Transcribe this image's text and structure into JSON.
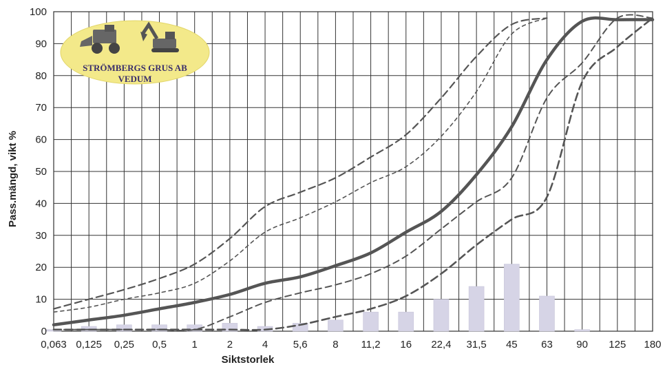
{
  "chart_data": {
    "type": "line",
    "title": "",
    "xlabel": "Siktstorlek",
    "ylabel": "Pass.mängd, vikt %",
    "x_scale": "categorical-log",
    "categories": [
      "0,063",
      "0,125",
      "0,25",
      "0,5",
      "1",
      "2",
      "4",
      "5,6",
      "8",
      "11,2",
      "16",
      "22,4",
      "31,5",
      "45",
      "63",
      "90",
      "125",
      "180"
    ],
    "ylim": [
      0,
      100
    ],
    "yticks": [
      0,
      10,
      20,
      30,
      40,
      50,
      60,
      70,
      80,
      90,
      100
    ],
    "grid": true,
    "legend": "none",
    "series": [
      {
        "style": "solid",
        "color": "#555555",
        "values": [
          2,
          3.5,
          5,
          7,
          9,
          11.5,
          15,
          17,
          20.5,
          24.5,
          31,
          37.5,
          49,
          64,
          85,
          97,
          97.5,
          97.5
        ]
      },
      {
        "style": "dashed-upper",
        "color": "#555555",
        "values": [
          7,
          10,
          13,
          16.5,
          21,
          29,
          39,
          43.5,
          48,
          54.5,
          61.5,
          73,
          86,
          96,
          98,
          null,
          null,
          null
        ]
      },
      {
        "style": "dashed-inner",
        "color": "#555555",
        "values": [
          6,
          7.5,
          10,
          12,
          15,
          22,
          31,
          35.5,
          40.5,
          46.5,
          51.5,
          61,
          75,
          93,
          98,
          null,
          null,
          null
        ]
      },
      {
        "style": "dashed-lower",
        "color": "#555555",
        "values": [
          0.5,
          0.5,
          0.5,
          0.5,
          0.5,
          4.5,
          9,
          12,
          14.5,
          18,
          23.5,
          32,
          40.5,
          48,
          73,
          84,
          98,
          98
        ]
      },
      {
        "style": "dashed-lowest",
        "color": "#555555",
        "values": [
          0.5,
          0.5,
          0.5,
          0.5,
          0.5,
          0.5,
          0.5,
          2,
          4.5,
          7,
          11,
          18,
          27,
          35,
          42,
          78,
          89,
          98
        ]
      }
    ],
    "bars": {
      "color": "#d6d4e6",
      "values": [
        0.5,
        1.5,
        2,
        2,
        2,
        2.5,
        1.5,
        2.5,
        3.5,
        6,
        6,
        10,
        14,
        21,
        11,
        0.5,
        0,
        0
      ]
    }
  },
  "logo": {
    "line1": "STRÖMBERGS GRUS AB",
    "line2": "VEDUM",
    "icons": [
      "wheel-loader-icon",
      "excavator-icon"
    ]
  }
}
